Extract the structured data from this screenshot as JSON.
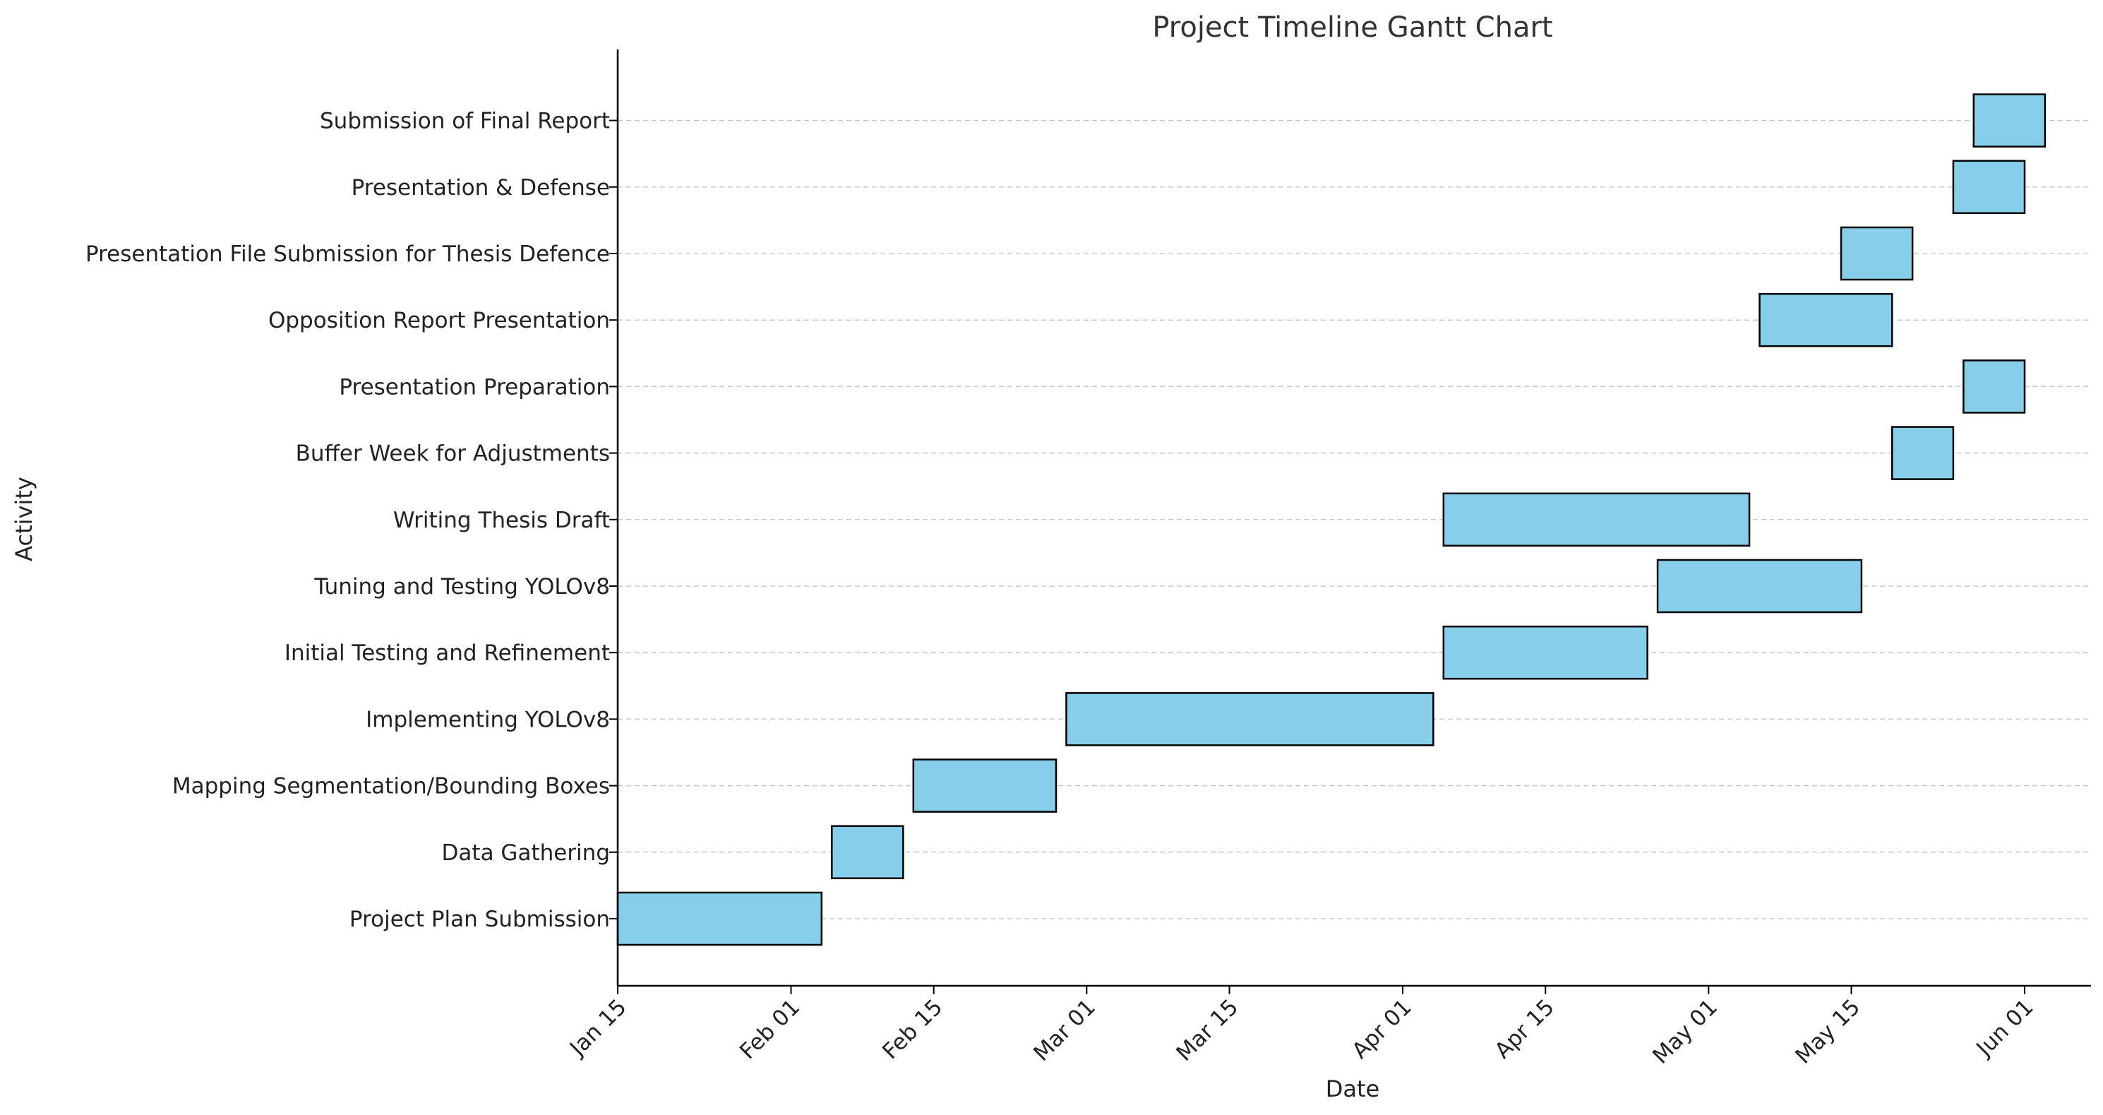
{
  "chart_data": {
    "type": "gantt",
    "title": "Project Timeline Gantt Chart",
    "xlabel": "Date",
    "ylabel": "Activity",
    "xlim": [
      "2024-01-15",
      "2024-06-03"
    ],
    "x_ticks": [
      {
        "date": "2024-01-15",
        "label": "Jan 15"
      },
      {
        "date": "2024-02-01",
        "label": "Feb 01"
      },
      {
        "date": "2024-02-15",
        "label": "Feb 15"
      },
      {
        "date": "2024-03-01",
        "label": "Mar 01"
      },
      {
        "date": "2024-03-15",
        "label": "Mar 15"
      },
      {
        "date": "2024-04-01",
        "label": "Apr 01"
      },
      {
        "date": "2024-04-15",
        "label": "Apr 15"
      },
      {
        "date": "2024-05-01",
        "label": "May 01"
      },
      {
        "date": "2024-05-15",
        "label": "May 15"
      },
      {
        "date": "2024-06-01",
        "label": "Jun 01"
      }
    ],
    "grid": "horizontal dashed",
    "bar_color": "#87CEEB",
    "edge_color": "#000000",
    "tasks": [
      {
        "name": "Project Plan Submission",
        "start": "2024-01-15",
        "end": "2024-02-04"
      },
      {
        "name": "Data Gathering",
        "start": "2024-02-05",
        "end": "2024-02-12"
      },
      {
        "name": "Mapping Segmentation/Bounding Boxes",
        "start": "2024-02-13",
        "end": "2024-02-27"
      },
      {
        "name": "Implementing YOLOv8",
        "start": "2024-02-28",
        "end": "2024-04-04"
      },
      {
        "name": "Initial Testing and Refinement",
        "start": "2024-04-05",
        "end": "2024-04-25"
      },
      {
        "name": "Tuning and Testing YOLOv8",
        "start": "2024-04-26",
        "end": "2024-05-16"
      },
      {
        "name": "Writing Thesis Draft",
        "start": "2024-04-05",
        "end": "2024-05-05"
      },
      {
        "name": "Buffer Week for Adjustments",
        "start": "2024-05-19",
        "end": "2024-05-25"
      },
      {
        "name": "Presentation Preparation",
        "start": "2024-05-26",
        "end": "2024-06-01"
      },
      {
        "name": "Opposition Report Presentation",
        "start": "2024-05-06",
        "end": "2024-05-19"
      },
      {
        "name": "Presentation File Submission for Thesis Defence",
        "start": "2024-05-14",
        "end": "2024-05-21"
      },
      {
        "name": "Presentation & Defense",
        "start": "2024-05-25",
        "end": "2024-06-01"
      },
      {
        "name": "Submission of Final Report",
        "start": "2024-05-27",
        "end": "2024-06-03"
      }
    ]
  }
}
